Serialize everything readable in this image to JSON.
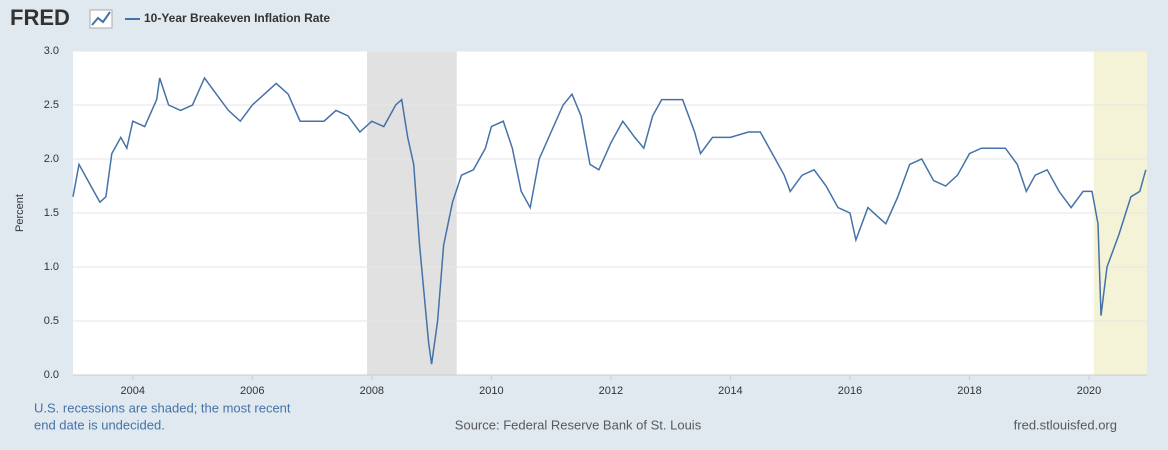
{
  "brand": "FRED",
  "chart_data": {
    "type": "line",
    "y_label": "Percent",
    "series": [
      {
        "name": "10-Year Breakeven Inflation Rate",
        "color": "#4572a7",
        "x": [
          2003.0,
          2003.1,
          2003.3,
          2003.45,
          2003.55,
          2003.65,
          2003.8,
          2003.9,
          2004.0,
          2004.2,
          2004.4,
          2004.45,
          2004.6,
          2004.8,
          2005.0,
          2005.2,
          2005.4,
          2005.6,
          2005.8,
          2006.0,
          2006.2,
          2006.4,
          2006.6,
          2006.8,
          2007.0,
          2007.2,
          2007.4,
          2007.6,
          2007.8,
          2008.0,
          2008.2,
          2008.4,
          2008.5,
          2008.6,
          2008.7,
          2008.8,
          2008.85,
          2008.95,
          2009.0,
          2009.1,
          2009.2,
          2009.35,
          2009.5,
          2009.7,
          2009.9,
          2010.0,
          2010.2,
          2010.35,
          2010.5,
          2010.65,
          2010.8,
          2011.0,
          2011.2,
          2011.35,
          2011.5,
          2011.65,
          2011.8,
          2012.0,
          2012.2,
          2012.4,
          2012.55,
          2012.7,
          2012.85,
          2013.0,
          2013.2,
          2013.4,
          2013.5,
          2013.7,
          2014.0,
          2014.3,
          2014.5,
          2014.7,
          2014.9,
          2015.0,
          2015.2,
          2015.4,
          2015.6,
          2015.8,
          2016.0,
          2016.1,
          2016.3,
          2016.5,
          2016.6,
          2016.8,
          2017.0,
          2017.2,
          2017.4,
          2017.6,
          2017.8,
          2018.0,
          2018.2,
          2018.4,
          2018.6,
          2018.8,
          2018.95,
          2019.1,
          2019.3,
          2019.5,
          2019.7,
          2019.9,
          2020.05,
          2020.15,
          2020.2,
          2020.3,
          2020.5,
          2020.7,
          2020.85,
          2020.95
        ],
        "values": [
          1.65,
          1.95,
          1.75,
          1.6,
          1.65,
          2.05,
          2.2,
          2.1,
          2.35,
          2.3,
          2.55,
          2.75,
          2.5,
          2.45,
          2.5,
          2.75,
          2.6,
          2.45,
          2.35,
          2.5,
          2.6,
          2.7,
          2.6,
          2.35,
          2.35,
          2.35,
          2.45,
          2.4,
          2.25,
          2.35,
          2.3,
          2.5,
          2.55,
          2.2,
          1.95,
          1.2,
          0.9,
          0.3,
          0.1,
          0.5,
          1.2,
          1.6,
          1.85,
          1.9,
          2.1,
          2.3,
          2.35,
          2.1,
          1.7,
          1.55,
          2.0,
          2.25,
          2.5,
          2.6,
          2.4,
          1.95,
          1.9,
          2.15,
          2.35,
          2.2,
          2.1,
          2.4,
          2.55,
          2.55,
          2.55,
          2.25,
          2.05,
          2.2,
          2.2,
          2.25,
          2.25,
          2.05,
          1.85,
          1.7,
          1.85,
          1.9,
          1.75,
          1.55,
          1.5,
          1.25,
          1.55,
          1.45,
          1.4,
          1.65,
          1.95,
          2.0,
          1.8,
          1.75,
          1.85,
          2.05,
          2.1,
          2.1,
          2.1,
          1.95,
          1.7,
          1.85,
          1.9,
          1.7,
          1.55,
          1.7,
          1.7,
          1.4,
          0.55,
          1.0,
          1.3,
          1.65,
          1.7,
          1.9
        ]
      }
    ],
    "xlim": [
      2003.0,
      2020.97
    ],
    "xticks": [
      2004,
      2006,
      2008,
      2010,
      2012,
      2014,
      2016,
      2018,
      2020
    ],
    "ylim": [
      0,
      3
    ],
    "yticks": [
      {
        "value": 0,
        "label": "0.0"
      },
      0.5,
      {
        "value": 1,
        "label": "1.0"
      },
      1.5,
      {
        "value": 2,
        "label": "2.0"
      },
      2.5,
      {
        "value": 3,
        "label": "3.0"
      }
    ],
    "grid": true,
    "recessions": [
      {
        "start": 2007.92,
        "end": 2009.42,
        "color": "#e1e1e1"
      },
      {
        "start": 2020.08,
        "end": 2020.97,
        "color": "#f5f3d7"
      }
    ]
  },
  "footer": {
    "note": [
      "U.S. recessions are shaded; the most recent",
      "end date is undecided."
    ],
    "source": "Source: Federal Reserve Bank of St. Louis",
    "url": "fred.stlouisfed.org"
  }
}
